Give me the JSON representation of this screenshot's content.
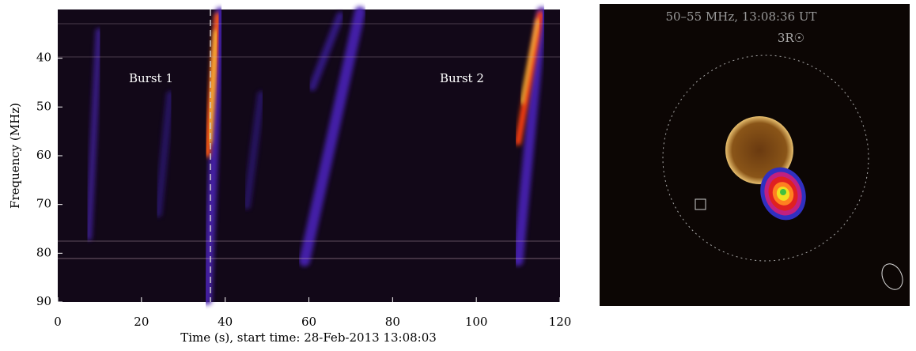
{
  "chart_data": [
    {
      "type": "spectrogram",
      "xlabel": "Time (s), start time: 28-Feb-2013 13:08:03",
      "ylabel": "Frequency (MHz)",
      "xlim": [
        0,
        120
      ],
      "xticks": [
        0,
        20,
        40,
        60,
        80,
        100,
        120
      ],
      "ylim": [
        90,
        30
      ],
      "yticks": [
        40,
        50,
        60,
        70,
        80,
        90
      ],
      "annotations": [
        "Burst 1",
        "Burst 2"
      ]
    },
    {
      "type": "image",
      "title": "50–55 MHz, 13:08:36 UT",
      "annotations": [
        "3R☉"
      ]
    }
  ]
}
